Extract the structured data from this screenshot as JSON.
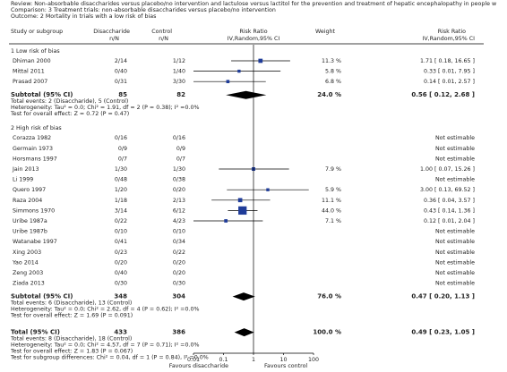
{
  "header": {
    "review": "Review:  Non-absorbable disaccharides versus placebo/no intervention and lactulose versus lactitol for the prevention and treatment of hepatic encephalopathy in people w",
    "comparison": "Comparison:  3 Treatment trials: non-absorbable disaccharides versus placebo/no intervention",
    "outcome": "Outcome:  2 Mortality in trials with a low risk of bias"
  },
  "columns": {
    "study": "Study or subgroup",
    "treat": "Disaccharide",
    "treat_unit": "n/N",
    "control": "Control",
    "control_unit": "n/N",
    "plot": "Risk Ratio",
    "plot_method": "IV,Random,95% CI",
    "weight": "Weight",
    "effect": "Risk Ratio",
    "effect_method": "IV,Random,95% CI"
  },
  "groups": [
    {
      "title": "1 Low risk of bias",
      "studies": [
        {
          "name": "Dhiman 2000",
          "treat": "2/14",
          "control": "1/12",
          "weight": {
            "value": 11.3,
            "label": "11.3 %"
          },
          "effect": {
            "value": 1.71,
            "low": 0.18,
            "high": 16.65,
            "label": "1.71 [ 0.18, 16.65 ]"
          }
        },
        {
          "name": "Mittal 2011",
          "treat": "0/40",
          "control": "1/40",
          "weight": {
            "value": 5.8,
            "label": "5.8 %"
          },
          "effect": {
            "value": 0.33,
            "low": 0.01,
            "high": 7.95,
            "label": "0.33 [ 0.01, 7.95 ]"
          }
        },
        {
          "name": "Prasad 2007",
          "treat": "0/31",
          "control": "3/30",
          "weight": {
            "value": 6.8,
            "label": "6.8 %"
          },
          "effect": {
            "value": 0.14,
            "low": 0.01,
            "high": 2.57,
            "label": "0.14 [ 0.01, 2.57 ]"
          }
        }
      ],
      "subtotal": {
        "label": "Subtotal (95% CI)",
        "treat": 85,
        "control": 82,
        "weight": {
          "value": 24.0,
          "label": "24.0 %"
        },
        "effect": {
          "value": 0.56,
          "low": 0.12,
          "high": 2.68,
          "label": "0.56 [ 0.12, 2.68 ]"
        }
      },
      "notes": [
        "Total events: 2 (Disaccharide), 5 (Control)",
        "Heterogeneity: Tau² = 0.0; Chi² = 1.91, df = 2 (P = 0.38); I² =0.0%",
        "Test for overall effect: Z = 0.72 (P = 0.47)"
      ]
    },
    {
      "title": "2 High risk of bias",
      "studies": [
        {
          "name": "Corazza 1982",
          "treat": "0/16",
          "control": "0/16",
          "effect": "Not estimable"
        },
        {
          "name": "Germain 1973",
          "treat": "0/9",
          "control": "0/9",
          "effect": "Not estimable"
        },
        {
          "name": "Horsmans 1997",
          "treat": "0/7",
          "control": "0/7",
          "effect": "Not estimable"
        },
        {
          "name": "Jain 2013",
          "treat": "1/30",
          "control": "1/30",
          "weight": {
            "value": 7.9,
            "label": "7.9 %"
          },
          "effect": {
            "value": 1.0,
            "low": 0.07,
            "high": 15.26,
            "label": "1.00 [ 0.07, 15.26 ]"
          }
        },
        {
          "name": "Li 1999",
          "treat": "0/48",
          "control": "0/38",
          "effect": "Not estimable"
        },
        {
          "name": "Quero 1997",
          "treat": "1/20",
          "control": "0/20",
          "weight": {
            "value": 5.9,
            "label": "5.9 %"
          },
          "effect": {
            "value": 3.0,
            "low": 0.13,
            "high": 69.52,
            "label": "3.00 [ 0.13, 69.52 ]"
          }
        },
        {
          "name": "Raza 2004",
          "treat": "1/18",
          "control": "2/13",
          "weight": {
            "value": 11.1,
            "label": "11.1 %"
          },
          "effect": {
            "value": 0.36,
            "low": 0.04,
            "high": 3.57,
            "label": "0.36 [ 0.04, 3.57 ]"
          }
        },
        {
          "name": "Simmons 1970",
          "treat": "3/14",
          "control": "6/12",
          "weight": {
            "value": 44.0,
            "label": "44.0 %"
          },
          "effect": {
            "value": 0.43,
            "low": 0.14,
            "high": 1.36,
            "label": "0.43 [ 0.14, 1.36 ]"
          }
        },
        {
          "name": "Uribe 1987a",
          "treat": "0/22",
          "control": "4/23",
          "weight": {
            "value": 7.1,
            "label": "7.1 %"
          },
          "effect": {
            "value": 0.12,
            "low": 0.01,
            "high": 2.04,
            "label": "0.12 [ 0.01, 2.04 ]"
          }
        },
        {
          "name": "Uribe 1987b",
          "treat": "0/10",
          "control": "0/10",
          "effect": "Not estimable"
        },
        {
          "name": "Watanabe 1997",
          "treat": "0/41",
          "control": "0/34",
          "effect": "Not estimable"
        },
        {
          "name": "Xing 2003",
          "treat": "0/23",
          "control": "0/22",
          "effect": "Not estimable"
        },
        {
          "name": "Yao 2014",
          "treat": "0/20",
          "control": "0/20",
          "effect": "Not estimable"
        },
        {
          "name": "Zeng 2003",
          "treat": "0/40",
          "control": "0/20",
          "effect": "Not estimable"
        },
        {
          "name": "Ziada 2013",
          "treat": "0/30",
          "control": "0/30",
          "effect": "Not estimable"
        }
      ],
      "subtotal": {
        "label": "Subtotal (95% CI)",
        "treat": 348,
        "control": 304,
        "weight": {
          "value": 76.0,
          "label": "76.0 %"
        },
        "effect": {
          "value": 0.47,
          "low": 0.2,
          "high": 1.13,
          "label": "0.47 [ 0.20, 1.13 ]"
        }
      },
      "notes": [
        "Total events: 6 (Disaccharide), 13 (Control)",
        "Heterogeneity: Tau² = 0.0; Chi² = 2.62, df = 4 (P = 0.62); I² =0.0%",
        "Test for overall effect: Z = 1.69 (P = 0.091)"
      ]
    }
  ],
  "total": {
    "label": "Total (95% CI)",
    "treat": 433,
    "control": 386,
    "weight": {
      "value": 100.0,
      "label": "100.0 %"
    },
    "effect": {
      "value": 0.49,
      "low": 0.23,
      "high": 1.05,
      "label": "0.49 [ 0.23, 1.05 ]"
    },
    "notes": [
      "Total events: 8 (Disaccharide), 18 (Control)",
      "Heterogeneity: Tau² = 0.0; Chi² = 4.57, df = 7 (P = 0.71); I² =0.0%",
      "Test for overall effect: Z = 1.83 (P = 0.067)",
      "Test for subgroup differences: Chi² = 0.04, df = 1 (P = 0.84), I² =0.0%"
    ]
  },
  "axis": {
    "scale": "log",
    "xlim": [
      0.01,
      100
    ],
    "xticks": [
      0.01,
      0.1,
      1,
      10,
      100
    ],
    "left_label": "Favours disaccharide",
    "right_label": "Favours control"
  }
}
